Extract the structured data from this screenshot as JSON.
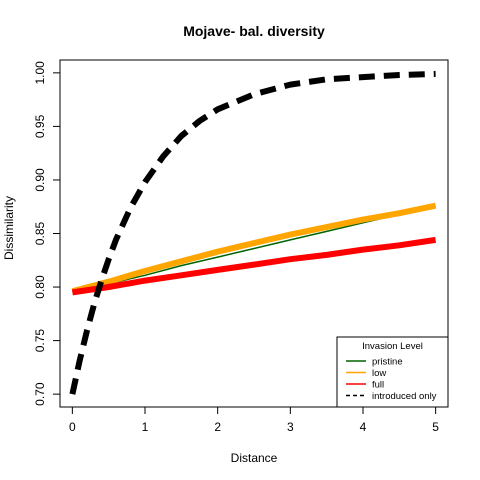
{
  "chart_data": {
    "type": "line",
    "title": "Mojave- bal. diversity",
    "xlabel": "Distance",
    "ylabel": "Dissimilarity",
    "xlim": [
      -0.17,
      5.17
    ],
    "ylim": [
      0.688,
      1.012
    ],
    "x_ticks": [
      "0",
      "1",
      "2",
      "3",
      "4",
      "5"
    ],
    "y_ticks": [
      "0.70",
      "0.75",
      "0.80",
      "0.85",
      "0.90",
      "0.95",
      "1.00"
    ],
    "grid": false,
    "legend": {
      "title": "Invasion Level",
      "position": "bottom-right",
      "entries": [
        {
          "label": "pristine",
          "color": "#006400",
          "style": "solid"
        },
        {
          "label": "low",
          "color": "#FFA500",
          "style": "solid"
        },
        {
          "label": "full",
          "color": "#FF0000",
          "style": "solid"
        },
        {
          "label": "introduced only",
          "color": "#000000",
          "style": "dashed"
        }
      ]
    },
    "series": [
      {
        "name": "pristine",
        "color": "#006400",
        "style": "solid",
        "x": [
          0,
          0.5,
          1,
          1.5,
          2,
          2.5,
          3,
          3.5,
          4,
          4.5,
          5
        ],
        "y": [
          0.795,
          0.803,
          0.811,
          0.82,
          0.828,
          0.836,
          0.844,
          0.852,
          0.86,
          0.868,
          0.876
        ]
      },
      {
        "name": "low",
        "color": "#FFA500",
        "style": "solid",
        "x": [
          0,
          0.5,
          1,
          1.5,
          2,
          2.5,
          3,
          3.5,
          4,
          4.5,
          5
        ],
        "y": [
          0.796,
          0.805,
          0.815,
          0.824,
          0.833,
          0.841,
          0.849,
          0.856,
          0.863,
          0.869,
          0.876
        ]
      },
      {
        "name": "full",
        "color": "#FF0000",
        "style": "solid",
        "x": [
          0,
          0.5,
          1,
          1.5,
          2,
          2.5,
          3,
          3.5,
          4,
          4.5,
          5
        ],
        "y": [
          0.795,
          0.8,
          0.806,
          0.811,
          0.816,
          0.821,
          0.826,
          0.83,
          0.835,
          0.839,
          0.844
        ]
      },
      {
        "name": "introduced only",
        "color": "#000000",
        "style": "dashed",
        "x": [
          0,
          0.1,
          0.2,
          0.3,
          0.4,
          0.5,
          0.6,
          0.8,
          1,
          1.25,
          1.5,
          1.75,
          2,
          2.5,
          3,
          3.5,
          4,
          4.5,
          5
        ],
        "y": [
          0.7,
          0.731,
          0.759,
          0.784,
          0.806,
          0.826,
          0.844,
          0.874,
          0.898,
          0.922,
          0.941,
          0.955,
          0.966,
          0.98,
          0.989,
          0.994,
          0.996,
          0.998,
          0.999
        ]
      }
    ]
  }
}
